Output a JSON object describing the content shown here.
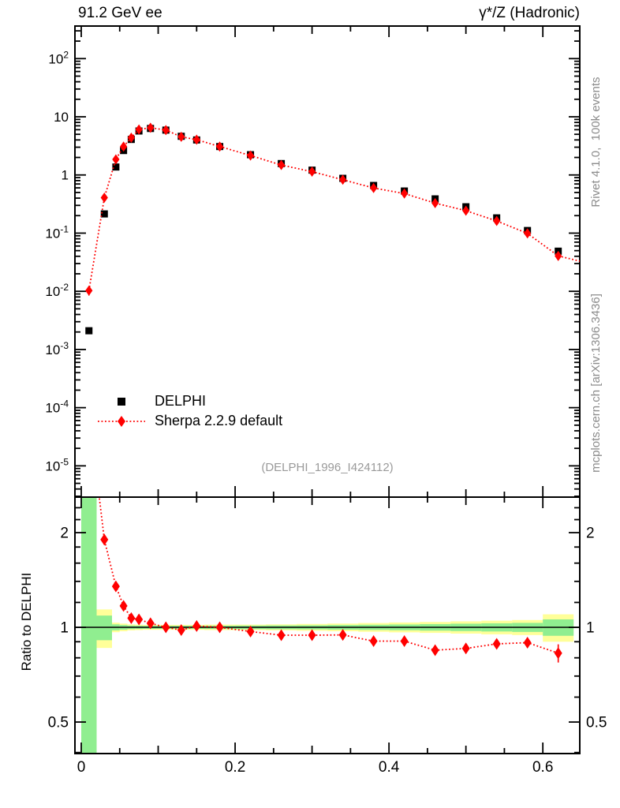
{
  "header": {
    "title_left": "91.2 GeV ee",
    "title_right": "γ*/Z (Hadronic)"
  },
  "side_texts": {
    "top_right": "Rivet 4.1.0,  100k events",
    "bottom_right": "mcplots.cern.ch [arXiv:1306.3436]"
  },
  "watermark": "(DELPHI_1996_I424112)",
  "ratio_ylabel": "Ratio to DELPHI",
  "legend": [
    {
      "label": "DELPHI",
      "marker": "square",
      "color": "#000000",
      "line": "none"
    },
    {
      "label": "Sherpa 2.2.9 default",
      "marker": "diamond",
      "color": "#ff0000",
      "line": "dotted"
    }
  ],
  "colors": {
    "data": "#000000",
    "mc": "#ff0000",
    "band_outer": "#ffff99",
    "band_inner": "#90ee90",
    "frame": "#000000",
    "side_text": "#8c8c8c",
    "watermark": "#9a9a9a"
  },
  "chart_data": {
    "type": "scatter",
    "subtype": "data-mc-comparison-with-ratio",
    "x_range": [
      -0.0082,
      0.648
    ],
    "x_major_ticks": [
      0,
      0.2,
      0.4,
      0.6
    ],
    "x_major_tick_labels": [
      "0",
      "0.2",
      "0.4",
      "0.6"
    ],
    "x_minor_step": 0.05,
    "grid": "off",
    "legend_position": "left-middle-of-main-panel",
    "main": {
      "y_scale": "log10",
      "y_range": [
        2.9e-06,
        363
      ],
      "y_tick_values": [
        100,
        10,
        1,
        0.1,
        0.01,
        0.001,
        0.0001,
        1e-05
      ],
      "y_tick_labels": [
        "10^2",
        "10",
        "1",
        "10^-1",
        "10^-2",
        "10^-3",
        "10^-4",
        "10^-5"
      ],
      "x": [
        0.01,
        0.03,
        0.045,
        0.055,
        0.065,
        0.075,
        0.09,
        0.11,
        0.13,
        0.15,
        0.18,
        0.22,
        0.26,
        0.3,
        0.34,
        0.38,
        0.42,
        0.46,
        0.5,
        0.54,
        0.58,
        0.62
      ],
      "series": [
        {
          "name": "DELPHI",
          "marker": "square",
          "color": "#000000",
          "line": "none",
          "y": [
            0.0021,
            0.214,
            1.37,
            2.63,
            4.08,
            5.7,
            6.3,
            5.9,
            4.62,
            4.0,
            3.08,
            2.23,
            1.57,
            1.21,
            0.875,
            0.66,
            0.53,
            0.388,
            0.284,
            0.183,
            0.111,
            0.049
          ],
          "err_frac": [
            0.06,
            0.04,
            0.03,
            0.025,
            0.02,
            0.02,
            0.02,
            0.02,
            0.02,
            0.02,
            0.02,
            0.02,
            0.02,
            0.02,
            0.02,
            0.02,
            0.02,
            0.02,
            0.025,
            0.03,
            0.035,
            0.05
          ]
        },
        {
          "name": "Sherpa 2.2.9 default",
          "marker": "diamond",
          "color": "#ff0000",
          "line": "dotted",
          "y": [
            0.0103,
            0.407,
            1.85,
            3.08,
            4.37,
            6.04,
            6.49,
            5.9,
            4.53,
            4.04,
            3.08,
            2.16,
            1.48,
            1.14,
            0.828,
            0.597,
            0.479,
            0.328,
            0.243,
            0.162,
            0.099,
            0.0406
          ],
          "err_frac": [
            0.18,
            0.06,
            0.03,
            0.025,
            0.02,
            0.015,
            0.012,
            0.012,
            0.012,
            0.012,
            0.012,
            0.012,
            0.013,
            0.014,
            0.015,
            0.016,
            0.018,
            0.02,
            0.022,
            0.026,
            0.03,
            0.05
          ],
          "line_extension": [
            0.648,
            0.033
          ]
        }
      ]
    },
    "ratio": {
      "y_scale": "log2",
      "y_range": [
        0.397,
        2.594
      ],
      "baseline": 1,
      "y_major_ticks": [
        2,
        1,
        0.5
      ],
      "y_major_tick_labels": [
        "2",
        "1",
        "0.5"
      ],
      "y_minor_ticks": [
        0.4,
        0.6,
        0.7,
        0.8,
        0.9,
        1.2,
        1.4,
        1.6,
        1.8,
        2.2,
        2.4
      ],
      "x": [
        0.01,
        0.03,
        0.045,
        0.055,
        0.065,
        0.075,
        0.09,
        0.11,
        0.13,
        0.15,
        0.18,
        0.22,
        0.26,
        0.3,
        0.34,
        0.38,
        0.42,
        0.46,
        0.5,
        0.54,
        0.58,
        0.62
      ],
      "values": [
        4.9,
        1.9,
        1.35,
        1.17,
        1.07,
        1.06,
        1.03,
        1.0,
        0.98,
        1.01,
        1.0,
        0.97,
        0.944,
        0.944,
        0.946,
        0.904,
        0.904,
        0.846,
        0.857,
        0.886,
        0.894,
        0.828
      ],
      "err": [
        0,
        0.07,
        0.035,
        0.022,
        0.016,
        0.013,
        0.011,
        0.009,
        0.009,
        0.009,
        0.009,
        0.01,
        0.011,
        0.012,
        0.013,
        0.015,
        0.017,
        0.019,
        0.022,
        0.026,
        0.032,
        0.055
      ],
      "bin_edges": [
        0,
        0.02,
        0.04,
        0.05,
        0.06,
        0.07,
        0.08,
        0.1,
        0.12,
        0.14,
        0.16,
        0.2,
        0.24,
        0.28,
        0.32,
        0.36,
        0.4,
        0.44,
        0.48,
        0.52,
        0.56,
        0.6,
        0.64
      ],
      "band_outer_halfwidth": [
        null,
        0.14,
        0.035,
        0.028,
        0.022,
        0.02,
        0.018,
        0.018,
        0.018,
        0.018,
        0.02,
        0.02,
        0.022,
        0.025,
        0.028,
        0.032,
        0.036,
        0.04,
        0.045,
        0.05,
        0.055,
        0.1
      ],
      "band_inner_halfwidth": [
        null,
        0.09,
        0.022,
        0.017,
        0.013,
        0.012,
        0.011,
        0.011,
        0.011,
        0.011,
        0.012,
        0.013,
        0.014,
        0.015,
        0.017,
        0.019,
        0.021,
        0.024,
        0.027,
        0.03,
        0.033,
        0.06
      ]
    }
  }
}
